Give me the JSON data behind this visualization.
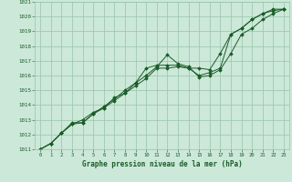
{
  "xlabel": "Graphe pression niveau de la mer (hPa)",
  "bg_color": "#cce8d8",
  "grid_color": "#99c4aa",
  "line_color": "#1a5c2a",
  "xlim": [
    -0.5,
    23.5
  ],
  "ylim": [
    1011,
    1021
  ],
  "xticks": [
    0,
    1,
    2,
    3,
    4,
    5,
    6,
    7,
    8,
    9,
    10,
    11,
    12,
    13,
    14,
    15,
    16,
    17,
    18,
    19,
    20,
    21,
    22,
    23
  ],
  "yticks": [
    1011,
    1012,
    1013,
    1014,
    1015,
    1016,
    1017,
    1018,
    1019,
    1020,
    1021
  ],
  "series1": [
    [
      0,
      1011.0
    ],
    [
      1,
      1011.4
    ],
    [
      2,
      1012.1
    ],
    [
      3,
      1012.7
    ],
    [
      4,
      1012.8
    ],
    [
      5,
      1013.4
    ],
    [
      6,
      1013.8
    ],
    [
      7,
      1014.3
    ],
    [
      8,
      1014.8
    ],
    [
      9,
      1015.5
    ],
    [
      10,
      1016.0
    ],
    [
      11,
      1016.6
    ],
    [
      12,
      1017.4
    ],
    [
      13,
      1016.8
    ],
    [
      14,
      1016.6
    ],
    [
      15,
      1015.9
    ],
    [
      16,
      1016.0
    ],
    [
      17,
      1016.4
    ],
    [
      18,
      1017.5
    ],
    [
      19,
      1018.8
    ],
    [
      20,
      1019.2
    ],
    [
      21,
      1019.8
    ],
    [
      22,
      1020.2
    ],
    [
      23,
      1020.5
    ]
  ],
  "series2": [
    [
      0,
      1011.0
    ],
    [
      1,
      1011.4
    ],
    [
      2,
      1012.1
    ],
    [
      3,
      1012.7
    ],
    [
      4,
      1013.0
    ],
    [
      5,
      1013.5
    ],
    [
      6,
      1013.8
    ],
    [
      7,
      1014.5
    ],
    [
      8,
      1014.8
    ],
    [
      9,
      1015.3
    ],
    [
      10,
      1015.8
    ],
    [
      11,
      1016.5
    ],
    [
      12,
      1016.5
    ],
    [
      13,
      1016.6
    ],
    [
      14,
      1016.5
    ],
    [
      15,
      1016.5
    ],
    [
      16,
      1016.4
    ],
    [
      17,
      1017.5
    ],
    [
      18,
      1018.8
    ],
    [
      19,
      1019.2
    ],
    [
      20,
      1019.8
    ],
    [
      21,
      1020.2
    ],
    [
      22,
      1020.5
    ],
    [
      23,
      1020.5
    ]
  ],
  "series3": [
    [
      0,
      1011.0
    ],
    [
      1,
      1011.4
    ],
    [
      2,
      1012.1
    ],
    [
      3,
      1012.8
    ],
    [
      4,
      1012.8
    ],
    [
      5,
      1013.4
    ],
    [
      6,
      1013.9
    ],
    [
      7,
      1014.4
    ],
    [
      8,
      1015.0
    ],
    [
      9,
      1015.5
    ],
    [
      10,
      1016.5
    ],
    [
      11,
      1016.7
    ],
    [
      12,
      1016.7
    ],
    [
      13,
      1016.7
    ],
    [
      14,
      1016.5
    ],
    [
      15,
      1016.0
    ],
    [
      16,
      1016.2
    ],
    [
      17,
      1016.5
    ],
    [
      18,
      1018.8
    ],
    [
      19,
      1019.2
    ],
    [
      20,
      1019.8
    ],
    [
      21,
      1020.2
    ],
    [
      22,
      1020.4
    ],
    [
      23,
      1020.5
    ]
  ]
}
